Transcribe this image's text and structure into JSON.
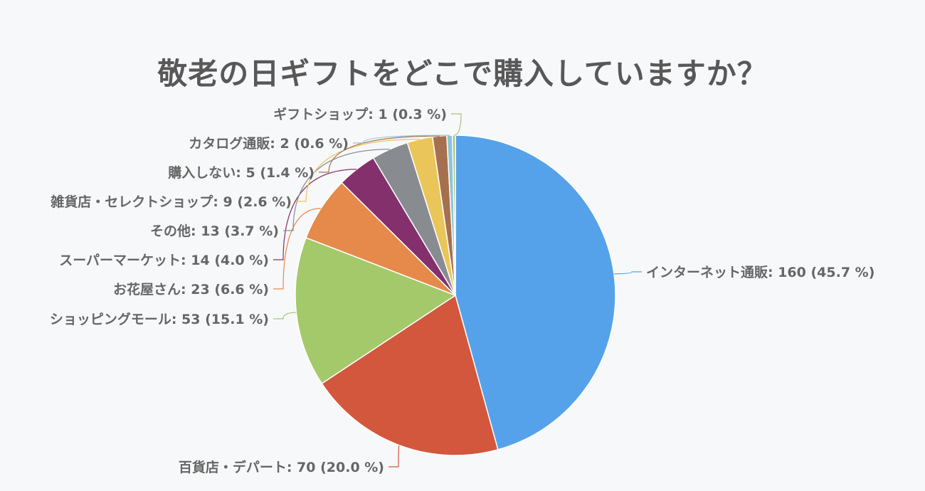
{
  "chart_data": {
    "type": "pie",
    "title": "敬老の日ギフトをどこで購入していますか？",
    "start_angle_deg": 0,
    "direction": "clockwise",
    "slices": [
      {
        "name": "インターネット通販",
        "value": 160,
        "percent": 45.7,
        "label": "インターネット通販: 160 (45.7 %)",
        "color": "#56a2ea"
      },
      {
        "name": "百貨店・デパート",
        "value": 70,
        "percent": 20.0,
        "label": "百貨店・デパート: 70 (20.0 %)",
        "color": "#d2573d"
      },
      {
        "name": "ショッピングモール",
        "value": 53,
        "percent": 15.1,
        "label": "ショッピングモール: 53 (15.1 %)",
        "color": "#a4c96a"
      },
      {
        "name": "お花屋さん",
        "value": 23,
        "percent": 6.6,
        "label": "お花屋さん: 23 (6.6 %)",
        "color": "#e58a4b"
      },
      {
        "name": "スーパーマーケット",
        "value": 14,
        "percent": 4.0,
        "label": "スーパーマーケット: 14 (4.0 %)",
        "color": "#83306c"
      },
      {
        "name": "その他",
        "value": 13,
        "percent": 3.7,
        "label": "その他: 13 (3.7 %)",
        "color": "#888c91"
      },
      {
        "name": "雑貨店・セレクトショップ",
        "value": 9,
        "percent": 2.6,
        "label": "雑貨店・セレクトショップ: 9 (2.6 %)",
        "color": "#e9c55a"
      },
      {
        "name": "購入しない",
        "value": 5,
        "percent": 1.4,
        "label": "購入しない: 5 (1.4 %)",
        "color": "#a6704e"
      },
      {
        "name": "カタログ通販",
        "value": 2,
        "percent": 0.6,
        "label": "カタログ通販: 2 (0.6 %)",
        "color": "#8ec4d8"
      },
      {
        "name": "ギフトショップ",
        "value": 1,
        "percent": 0.3,
        "label": "ギフトショップ: 1 (0.3 %)",
        "color": "#a9c07a"
      }
    ]
  }
}
